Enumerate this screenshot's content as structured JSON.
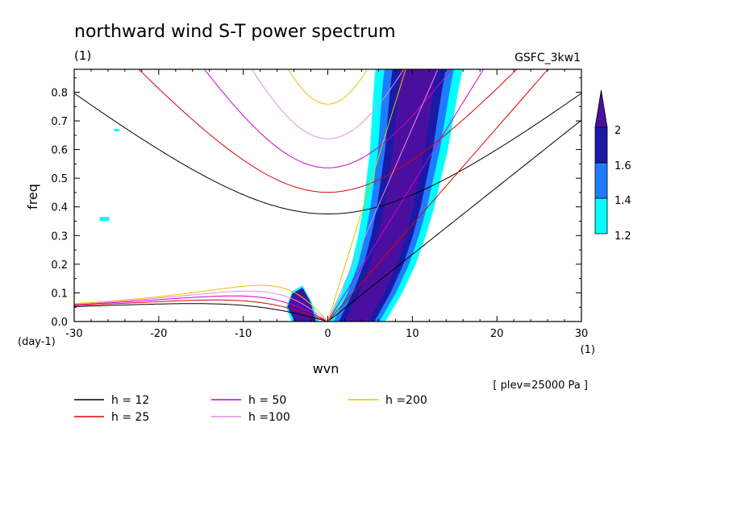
{
  "chart_data": {
    "type": "contour",
    "title": "northward wind S-T power spectrum",
    "title_unit": "(1)",
    "model_label": "GSFC_3kw1",
    "xlabel": "wvn",
    "x_unit": "(1)",
    "ylabel": "freq",
    "y_unit": "(day-1)",
    "plev_label": "[ plev=25000 Pa ]",
    "xlim": [
      -30,
      30
    ],
    "ylim": [
      0,
      0.88
    ],
    "x_ticks": [
      -30,
      -20,
      -10,
      0,
      10,
      20,
      30
    ],
    "x_tick_labels": [
      "-30",
      "-20",
      "-10",
      "0",
      "10",
      "20",
      "30"
    ],
    "y_ticks": [
      0,
      0.1,
      0.2,
      0.3,
      0.4,
      0.5,
      0.6,
      0.7,
      0.8
    ],
    "y_tick_labels": [
      "0.0",
      "0.1",
      "0.2",
      "0.3",
      "0.4",
      "0.5",
      "0.6",
      "0.7",
      "0.8"
    ],
    "colorbar": {
      "levels": [
        "1.2",
        "1.4",
        "1.6",
        "2"
      ],
      "colors": [
        "#00ffff",
        "#1e7cff",
        "#1a1aa6",
        "#4b0fa0"
      ]
    },
    "dispersion_curves": [
      {
        "name": "h = 12",
        "h": 12,
        "color": "#000000"
      },
      {
        "name": "h = 25",
        "h": 25,
        "color": "#e00000"
      },
      {
        "name": "h = 50",
        "h": 50,
        "color": "#cc00cc"
      },
      {
        "name": "h =100",
        "h": 100,
        "color": "#e08ee0"
      },
      {
        "name": "h =200",
        "h": 200,
        "color": "#e8c000"
      }
    ],
    "power_regions": [
      {
        "level": "2",
        "note": "band along eastward gravity/Kelvin branch",
        "x_range": [
          3,
          13
        ],
        "y_range": [
          0.0,
          0.88
        ]
      },
      {
        "level": "2",
        "note": "low-frequency westward blob",
        "x_range": [
          -5.5,
          -2
        ],
        "y_range": [
          0.0,
          0.13
        ]
      },
      {
        "level": "1.2",
        "note": "small patch",
        "x": -25,
        "y": 0.36
      }
    ]
  }
}
